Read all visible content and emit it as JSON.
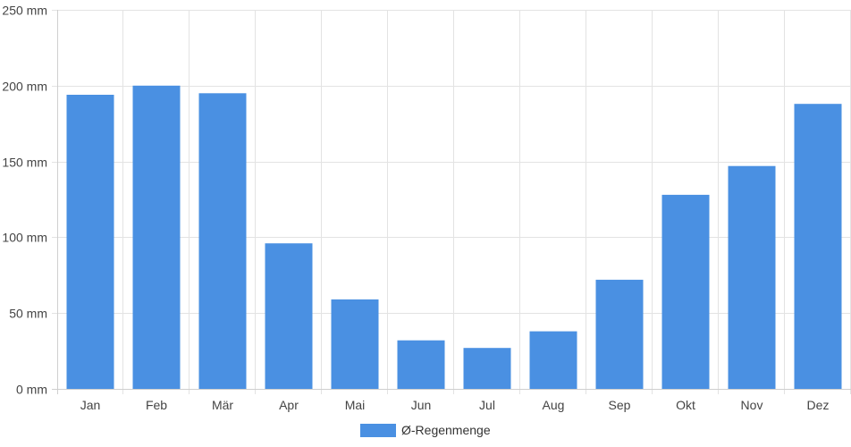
{
  "chart_data": {
    "type": "bar",
    "categories": [
      "Jan",
      "Feb",
      "Mär",
      "Apr",
      "Mai",
      "Jun",
      "Jul",
      "Aug",
      "Sep",
      "Okt",
      "Nov",
      "Dez"
    ],
    "series": [
      {
        "name": "Ø-Regenmenge",
        "values": [
          194,
          200,
          195,
          96,
          59,
          32,
          27,
          38,
          72,
          128,
          147,
          188
        ],
        "color": "#4a90e2"
      }
    ],
    "title": "",
    "xlabel": "",
    "ylabel": "",
    "ylim": [
      0,
      250
    ],
    "yticks": [
      0,
      50,
      100,
      150,
      200,
      250
    ],
    "ytick_labels": [
      "0 mm",
      "50 mm",
      "100 mm",
      "150 mm",
      "200 mm",
      "250 mm"
    ],
    "grid": true,
    "legend_position": "bottom"
  }
}
